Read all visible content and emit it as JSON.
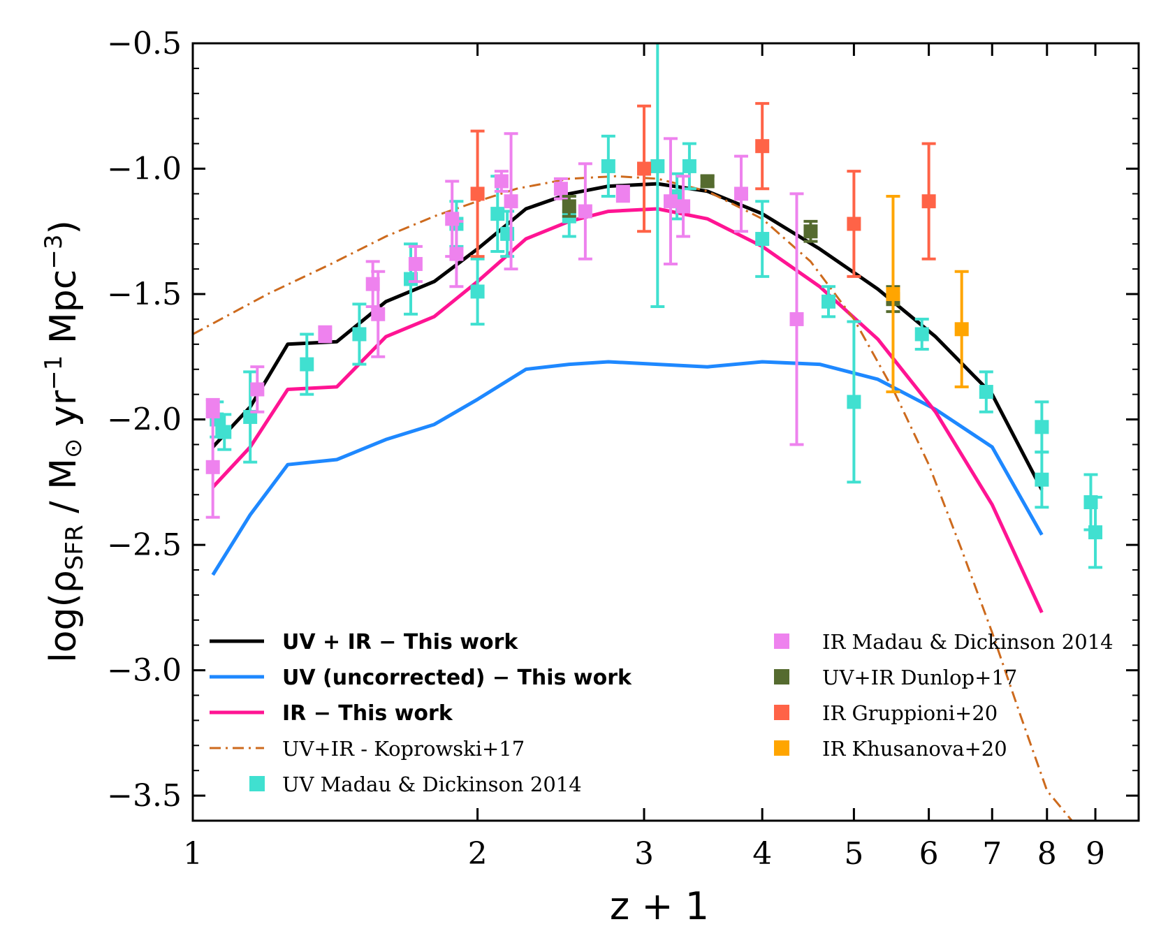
{
  "chart_data": {
    "type": "line",
    "xlabel": "z + 1",
    "ylabel": "log(ρSFR / M⊙ yr⁻¹ Mpc⁻³)",
    "ylabel_parts": {
      "pre": "log(ρ",
      "sub": "SFR",
      "mid": " / M",
      "sun": "⊙",
      "yr": " yr",
      "e1": "−1",
      "mpc": " Mpc",
      "e2": "−3",
      "post": ")"
    },
    "xscale": "log",
    "xlim": [
      1.0,
      10.0
    ],
    "ylim": [
      -3.6,
      -0.5
    ],
    "xticks": [
      1,
      2,
      3,
      4,
      5,
      6,
      7,
      8,
      9
    ],
    "xtick_labels": [
      "1",
      "2",
      "3",
      "4",
      "5",
      "6",
      "7",
      "8",
      "9"
    ],
    "yticks": [
      -3.5,
      -3.0,
      -2.5,
      -2.0,
      -1.5,
      -1.0,
      -0.5
    ],
    "ytick_labels": [
      "−3.5",
      "−3.0",
      "−2.5",
      "−2.0",
      "−1.5",
      "−1.0",
      "−0.5"
    ],
    "legend_left": "lower-left",
    "legend_right": "lower-right",
    "series": [
      {
        "name": "UV + IR  −  This work",
        "kind": "line",
        "color": "#000000",
        "bold_label": true,
        "legend_col": 0,
        "x": [
          1.05,
          1.15,
          1.26,
          1.42,
          1.6,
          1.8,
          2.0,
          2.25,
          2.5,
          2.75,
          3.1,
          3.5,
          4.0,
          4.6,
          5.3,
          6.1,
          7.0,
          7.9
        ],
        "y": [
          -2.11,
          -1.95,
          -1.7,
          -1.69,
          -1.53,
          -1.45,
          -1.32,
          -1.16,
          -1.1,
          -1.07,
          -1.06,
          -1.09,
          -1.18,
          -1.32,
          -1.48,
          -1.67,
          -1.9,
          -2.28
        ]
      },
      {
        "name": "UV (uncorrected)  −  This work",
        "kind": "line",
        "color": "#1e88ff",
        "bold_label": true,
        "legend_col": 0,
        "x": [
          1.05,
          1.15,
          1.26,
          1.42,
          1.6,
          1.8,
          2.0,
          2.25,
          2.5,
          2.75,
          3.1,
          3.5,
          4.0,
          4.6,
          5.3,
          6.1,
          7.0,
          7.9
        ],
        "y": [
          -2.62,
          -2.38,
          -2.18,
          -2.16,
          -2.08,
          -2.02,
          -1.92,
          -1.8,
          -1.78,
          -1.77,
          -1.78,
          -1.79,
          -1.77,
          -1.78,
          -1.84,
          -1.96,
          -2.11,
          -2.46
        ]
      },
      {
        "name": "IR  −  This work",
        "kind": "line",
        "color": "#ff1493",
        "bold_label": true,
        "legend_col": 0,
        "x": [
          1.05,
          1.15,
          1.26,
          1.42,
          1.6,
          1.8,
          2.0,
          2.25,
          2.5,
          2.75,
          3.1,
          3.5,
          4.0,
          4.6,
          5.3,
          6.1,
          7.0,
          7.9
        ],
        "y": [
          -2.27,
          -2.11,
          -1.88,
          -1.87,
          -1.67,
          -1.59,
          -1.45,
          -1.28,
          -1.21,
          -1.17,
          -1.16,
          -1.2,
          -1.31,
          -1.47,
          -1.68,
          -1.97,
          -2.34,
          -2.77
        ]
      },
      {
        "name": "UV+IR - Koprowski+17",
        "kind": "dashdot",
        "color": "#cd6a1d",
        "bold_label": false,
        "legend_col": 0,
        "x": [
          1.0,
          1.2,
          1.4,
          1.6,
          1.8,
          2.0,
          2.2,
          2.5,
          2.8,
          3.1,
          3.5,
          4.0,
          4.5,
          5.0,
          5.5,
          6.0,
          6.5,
          7.0,
          7.5,
          8.0,
          8.5
        ],
        "y": [
          -1.66,
          -1.5,
          -1.38,
          -1.27,
          -1.19,
          -1.13,
          -1.08,
          -1.04,
          -1.03,
          -1.04,
          -1.09,
          -1.2,
          -1.37,
          -1.6,
          -1.88,
          -2.18,
          -2.52,
          -2.85,
          -3.18,
          -3.48,
          -3.6
        ]
      },
      {
        "name": "UV Madau & Dickinson 2014",
        "kind": "points",
        "color": "#40e0d0",
        "bold_label": false,
        "legend_col": 0,
        "x": [
          1.06,
          1.08,
          1.15,
          1.32,
          1.5,
          1.7,
          1.9,
          2.0,
          2.1,
          2.15,
          2.5,
          2.75,
          3.1,
          3.25,
          3.35,
          4.0,
          4.7,
          5.0,
          5.9,
          6.9,
          7.9,
          7.9,
          8.9,
          9.0
        ],
        "y": [
          -2.0,
          -2.05,
          -1.99,
          -1.78,
          -1.66,
          -1.44,
          -1.22,
          -1.49,
          -1.18,
          -1.26,
          -1.19,
          -0.99,
          -0.99,
          -1.11,
          -0.99,
          -1.28,
          -1.53,
          -1.93,
          -1.66,
          -1.89,
          -2.03,
          -2.24,
          -2.33,
          -2.45
        ],
        "err": [
          0.07,
          0.07,
          0.18,
          0.12,
          0.12,
          0.14,
          0.09,
          0.13,
          0.15,
          0.09,
          0.08,
          0.12,
          0.56,
          0.09,
          0.09,
          0.15,
          0.06,
          0.32,
          0.06,
          0.08,
          0.1,
          0.11,
          0.11,
          0.14
        ]
      },
      {
        "name": "IR Madau & Dickinson 2014",
        "kind": "points",
        "color": "#ee82ee",
        "bold_label": false,
        "legend_col": 1,
        "x": [
          1.05,
          1.05,
          1.17,
          1.38,
          1.55,
          1.57,
          1.72,
          1.88,
          1.9,
          2.12,
          2.17,
          2.45,
          2.6,
          2.85,
          3.2,
          3.3,
          3.8,
          4.35
        ],
        "y": [
          -1.95,
          -2.19,
          -1.88,
          -1.66,
          -1.46,
          -1.58,
          -1.38,
          -1.2,
          -1.34,
          -1.05,
          -1.13,
          -1.08,
          -1.17,
          -1.1,
          -1.13,
          -1.15,
          -1.1,
          -1.6
        ],
        "err": [
          0.03,
          0.2,
          0.09,
          0.03,
          0.09,
          0.17,
          0.07,
          0.15,
          0.13,
          0.04,
          0.27,
          0.04,
          0.19,
          0.03,
          0.25,
          0.12,
          0.15,
          0.5
        ]
      },
      {
        "name": "UV+IR Dunlop+17",
        "kind": "points",
        "color": "#556b2f",
        "bold_label": false,
        "legend_col": 1,
        "x": [
          2.5,
          3.5,
          4.5,
          5.5
        ],
        "y": [
          -1.15,
          -1.05,
          -1.25,
          -1.52
        ],
        "err": [
          0.04,
          0.02,
          0.04,
          0.05
        ]
      },
      {
        "name": "IR Gruppioni+20",
        "kind": "points",
        "color": "#ff6347",
        "bold_label": false,
        "legend_col": 1,
        "x": [
          2.0,
          3.0,
          4.0,
          5.0,
          6.0
        ],
        "y": [
          -1.1,
          -1.0,
          -0.91,
          -1.22,
          -1.13
        ],
        "err": [
          0.25,
          0.25,
          0.17,
          0.21,
          0.23
        ]
      },
      {
        "name": "IR Khusanova+20",
        "kind": "points",
        "color": "#ffa500",
        "bold_label": false,
        "legend_col": 1,
        "x": [
          5.5,
          6.5
        ],
        "y": [
          -1.5,
          -1.64
        ],
        "err": [
          0.39,
          0.23
        ]
      }
    ]
  }
}
